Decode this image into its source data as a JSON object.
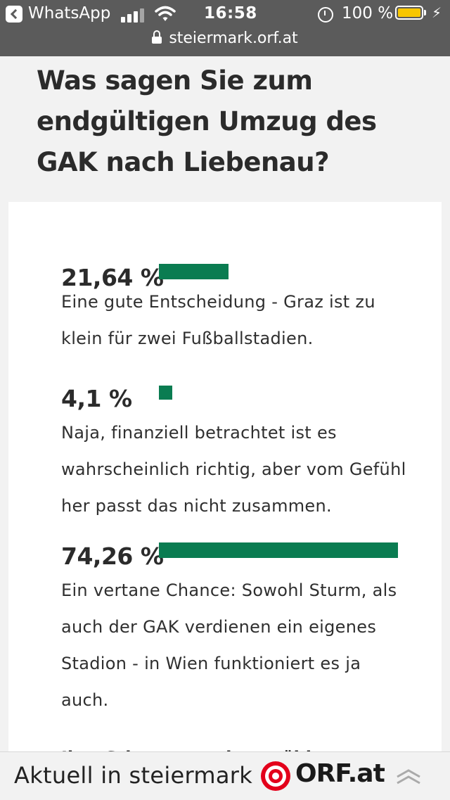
{
  "status_bar": {
    "back_app": "WhatsApp",
    "time": "16:58",
    "battery": "100 %",
    "url": "steiermark.orf.at"
  },
  "headline": "Was sagen Sie zum endgültigen Umzug des GAK nach Liebenau?",
  "poll": {
    "accent_color": "#0a7c51",
    "options": [
      {
        "percent": "21,64 %",
        "value": 21.64,
        "text": "Eine gute Entscheidung - Graz ist zu klein für zwei Fußballstadien."
      },
      {
        "percent": "4,1 %",
        "value": 4.1,
        "text": "Naja, finanziell betrachtet ist es wahrscheinlich richtig, aber vom Gefühl her passt das nicht zusammen."
      },
      {
        "percent": "74,26 %",
        "value": 74.26,
        "text": "Ein vertane Chance: Sowohl Sturm, als auch der GAK verdienen ein eigenes Stadion - in Wien funktioniert es ja auch."
      }
    ],
    "vote_notice": "Ihre Stimme wurde gezählt"
  },
  "bottom_bar": {
    "label": "Aktuell in steiermark",
    "brand": "ORF.at",
    "icons": {
      "logo": "orf-target-icon",
      "scroll_top": "double-chevron-up-icon"
    }
  }
}
